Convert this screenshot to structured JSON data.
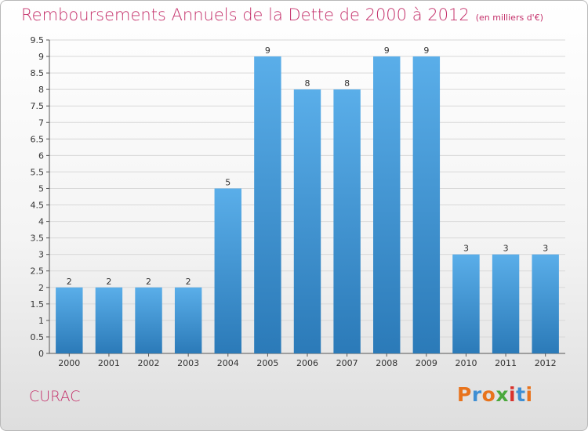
{
  "header": {
    "title": "Remboursements Annuels de la Dette de 2000 à 2012",
    "unit": "(en milliers d'€)"
  },
  "footer": {
    "commune": "CURAC",
    "logo_text": "Proxiti",
    "logo_colors": [
      "#e8731c",
      "#3f8fd3",
      "#e8731c",
      "#4aa83c",
      "#d9322c",
      "#3f8fd3",
      "#e8731c"
    ]
  },
  "colors": {
    "accent": "#c4306a",
    "bar_top": "#5aaee9",
    "bar_bottom": "#2b7ab8",
    "grid": "#d8d8d8"
  },
  "chart_data": {
    "type": "bar",
    "title": "Remboursements Annuels de la Dette de 2000 à 2012",
    "subtitle": "(en milliers d'€)",
    "xlabel": "",
    "ylabel": "",
    "categories": [
      "2000",
      "2001",
      "2002",
      "2003",
      "2004",
      "2005",
      "2006",
      "2007",
      "2008",
      "2009",
      "2010",
      "2011",
      "2012"
    ],
    "values": [
      2,
      2,
      2,
      2,
      5,
      9,
      8,
      8,
      9,
      9,
      3,
      3,
      3
    ],
    "data_labels": [
      "2",
      "2",
      "2",
      "2",
      "5",
      "9",
      "8",
      "8",
      "9",
      "9",
      "3",
      "3",
      "3"
    ],
    "ylim": [
      0,
      9.5
    ],
    "yticks": [
      0,
      0.5,
      1,
      1.5,
      2,
      2.5,
      3,
      3.5,
      4,
      4.5,
      5,
      5.5,
      6,
      6.5,
      7,
      7.5,
      8,
      8.5,
      9,
      9.5
    ],
    "ytick_labels": [
      "0",
      "0.5",
      "1",
      "1.5",
      "2",
      "2.5",
      "3",
      "3.5",
      "4",
      "4.5",
      "5",
      "5.5",
      "6",
      "6.5",
      "7",
      "7.5",
      "8",
      "8.5",
      "9",
      "9.5"
    ],
    "grid": true,
    "legend": "none"
  }
}
